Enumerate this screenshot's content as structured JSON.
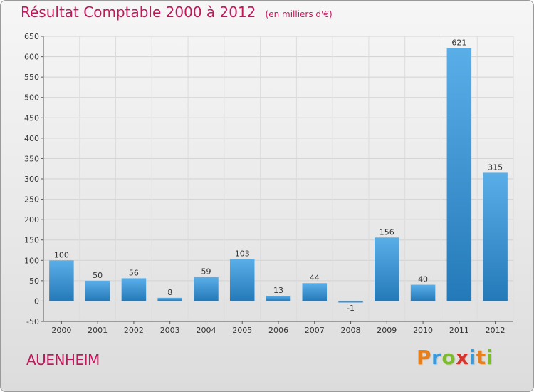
{
  "title": "Résultat Comptable 2000 à 2012",
  "unit_note": "(en milliers d'€)",
  "commune": "AUENHEIM",
  "logo": {
    "letters": [
      "P",
      "r",
      "o",
      "x",
      "i",
      "t",
      "i"
    ],
    "colors": [
      "#e6801e",
      "#3a9ad9",
      "#7cbb2b",
      "#d6332d",
      "#3a9ad9",
      "#e6801e",
      "#7cbb2b"
    ]
  },
  "colors": {
    "bar_light": "#5aaee8",
    "bar_dark": "#2479b8",
    "title": "#c2185b"
  },
  "chart_data": {
    "type": "bar",
    "categories": [
      "2000",
      "2001",
      "2002",
      "2003",
      "2004",
      "2005",
      "2006",
      "2007",
      "2008",
      "2009",
      "2010",
      "2011",
      "2012"
    ],
    "values": [
      100,
      50,
      56,
      8,
      59,
      103,
      13,
      44,
      -1,
      156,
      40,
      621,
      315
    ],
    "data_labels": [
      "100",
      "50",
      "56",
      "8",
      "59",
      "103",
      "13",
      "44",
      "-1",
      "156",
      "40",
      "621",
      "315"
    ],
    "ylim": [
      -50,
      650
    ],
    "yticks": [
      -50,
      0,
      50,
      100,
      150,
      200,
      250,
      300,
      350,
      400,
      450,
      500,
      550,
      600,
      650
    ],
    "grid": true,
    "xlabel": "",
    "ylabel": ""
  }
}
